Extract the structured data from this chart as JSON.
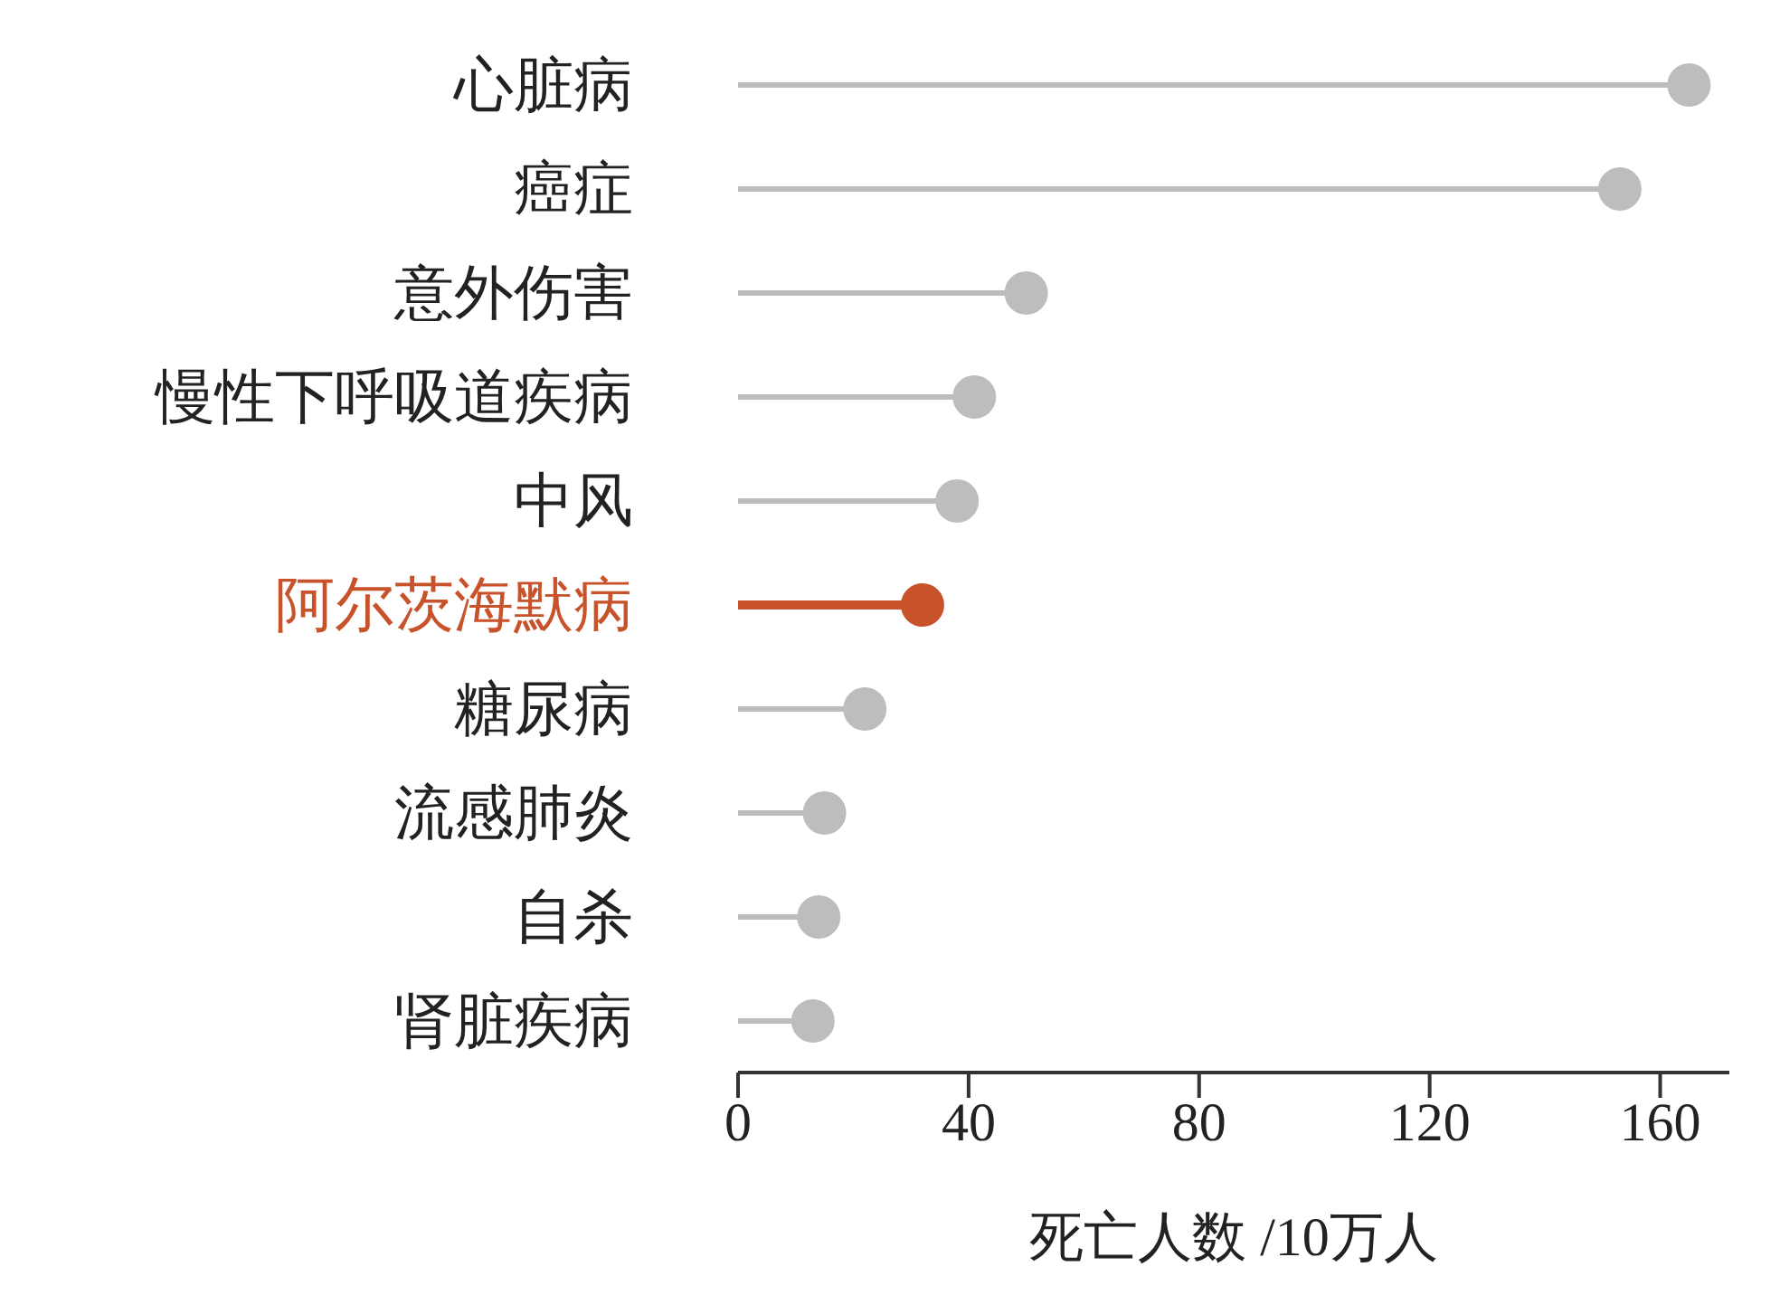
{
  "chart_data": {
    "type": "lollipop",
    "orientation": "horizontal",
    "xlabel": "死亡人数 /10万人",
    "categories": [
      "心脏病",
      "癌症",
      "意外伤害",
      "慢性下呼吸道疾病",
      "中风",
      "阿尔茨海默病",
      "糖尿病",
      "流感肺炎",
      "自杀",
      "肾脏疾病"
    ],
    "values": [
      165,
      153,
      50,
      41,
      38,
      32,
      22,
      15,
      14,
      13
    ],
    "colors": [
      "#bdbdbd",
      "#bdbdbd",
      "#bdbdbd",
      "#bdbdbd",
      "#bdbdbd",
      "#c8522a",
      "#bdbdbd",
      "#bdbdbd",
      "#bdbdbd",
      "#bdbdbd"
    ],
    "xlim": [
      0,
      172
    ],
    "xticks": [
      0,
      40,
      80,
      120,
      160
    ],
    "grid": false,
    "legend": false
  }
}
